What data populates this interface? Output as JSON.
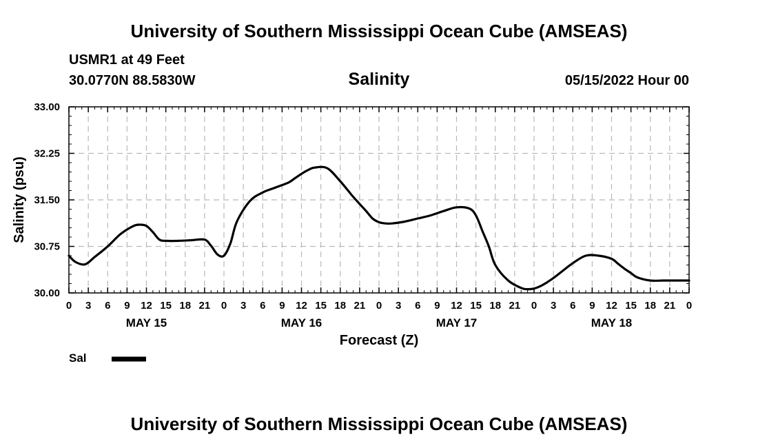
{
  "header": {
    "title": "University of Southern Mississippi Ocean Cube (AMSEAS)",
    "station": "USMR1 at 49 Feet",
    "coords": "30.0770N  88.5830W",
    "variable": "Salinity",
    "datetime": "05/15/2022 Hour 00"
  },
  "footer": {
    "title": "University of Southern Mississippi Ocean Cube (AMSEAS)"
  },
  "legend": {
    "label": "Sal",
    "color": "#000000"
  },
  "chart_data": {
    "type": "line",
    "title": "Salinity",
    "xlabel": "Forecast (Z)",
    "ylabel": "Salinity (psu)",
    "xlim": [
      0,
      96
    ],
    "ylim": [
      30.0,
      33.0
    ],
    "yticks": [
      "30.00",
      "30.75",
      "31.50",
      "32.25",
      "33.00"
    ],
    "ytick_values": [
      30.0,
      30.75,
      31.5,
      32.25,
      33.0
    ],
    "xtick_labels": [
      "0",
      "3",
      "6",
      "9",
      "12",
      "15",
      "18",
      "21",
      "0",
      "3",
      "6",
      "9",
      "12",
      "15",
      "18",
      "21",
      "0",
      "3",
      "6",
      "9",
      "12",
      "15",
      "18",
      "21",
      "0",
      "3",
      "6",
      "9",
      "12",
      "15",
      "18",
      "21",
      "0"
    ],
    "day_labels": [
      "MAY 15",
      "MAY 16",
      "MAY 17",
      "MAY 18"
    ],
    "grid": true,
    "series": [
      {
        "name": "Sal",
        "x": [
          0,
          1,
          2.5,
          4,
          6,
          8,
          10,
          11,
          12,
          13,
          14,
          15,
          17,
          19,
          21,
          22,
          23,
          24,
          25,
          26,
          28,
          30,
          32,
          34,
          35,
          36,
          37,
          38,
          40,
          42,
          44,
          46,
          47,
          48,
          49,
          50,
          52,
          54,
          56,
          58,
          60,
          62,
          63,
          64,
          65,
          66,
          68,
          70,
          71,
          72,
          73,
          74,
          75,
          76,
          78,
          80,
          82,
          84,
          85,
          86,
          87,
          88,
          90,
          92,
          94,
          96
        ],
        "y": [
          30.6,
          30.5,
          30.46,
          30.58,
          30.75,
          30.95,
          31.08,
          31.1,
          31.08,
          30.98,
          30.86,
          30.84,
          30.84,
          30.85,
          30.86,
          30.76,
          30.62,
          30.6,
          30.8,
          31.15,
          31.48,
          31.62,
          31.7,
          31.78,
          31.85,
          31.92,
          31.98,
          32.02,
          32.01,
          31.8,
          31.55,
          31.32,
          31.2,
          31.14,
          31.12,
          31.12,
          31.15,
          31.2,
          31.25,
          31.32,
          31.38,
          31.36,
          31.25,
          31.0,
          30.75,
          30.45,
          30.2,
          30.08,
          30.06,
          30.07,
          30.11,
          30.17,
          30.24,
          30.32,
          30.48,
          30.6,
          30.6,
          30.55,
          30.47,
          30.39,
          30.32,
          30.25,
          30.2,
          30.2,
          30.2,
          30.2
        ]
      }
    ]
  }
}
